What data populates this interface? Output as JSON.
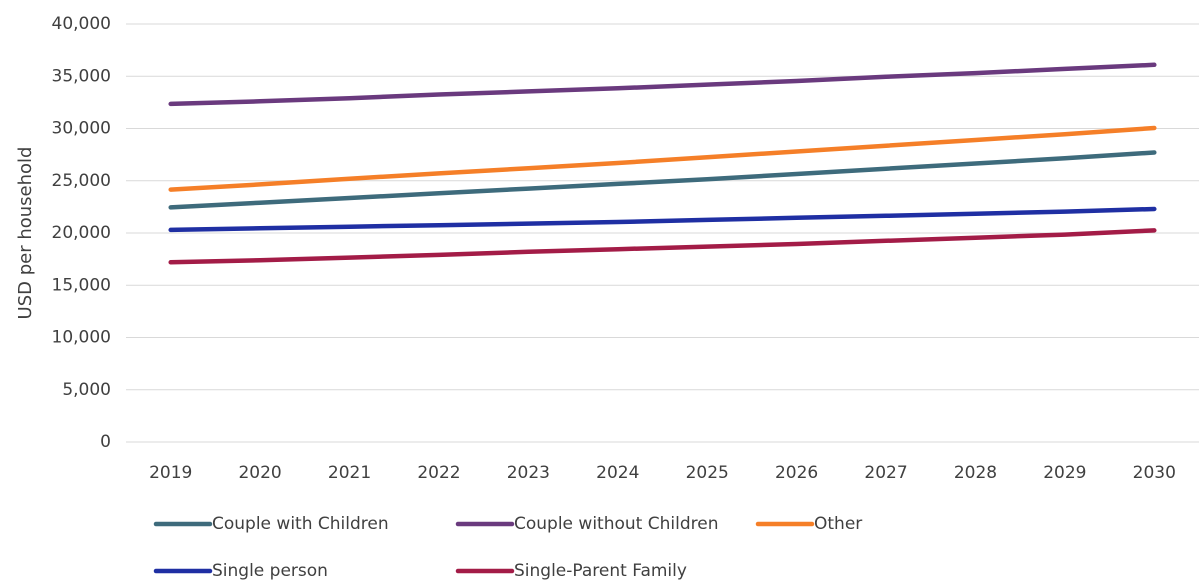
{
  "chart_data": {
    "type": "line",
    "title": "",
    "xlabel": "",
    "ylabel": "USD per household",
    "ylim": [
      0,
      40000
    ],
    "yticks": [
      0,
      5000,
      10000,
      15000,
      20000,
      25000,
      30000,
      35000,
      40000
    ],
    "ytick_labels": [
      "0",
      "5,000",
      "10,000",
      "15,000",
      "20,000",
      "25,000",
      "30,000",
      "35,000",
      "40,000"
    ],
    "grid": true,
    "legend_position": "bottom",
    "categories": [
      "2019",
      "2020",
      "2021",
      "2022",
      "2023",
      "2024",
      "2025",
      "2026",
      "2027",
      "2028",
      "2029",
      "2030"
    ],
    "series": [
      {
        "name": "Couple with Children",
        "color": "#3e6b7c",
        "values": [
          22450,
          22900,
          23350,
          23800,
          24250,
          24700,
          25150,
          25650,
          26150,
          26650,
          27150,
          27700
        ]
      },
      {
        "name": "Couple without Children",
        "color": "#6a3a7e",
        "values": [
          32350,
          32600,
          32900,
          33250,
          33550,
          33850,
          34200,
          34550,
          34950,
          35300,
          35700,
          36100
        ]
      },
      {
        "name": "Other",
        "color": "#f57f28",
        "values": [
          24150,
          24650,
          25200,
          25700,
          26200,
          26700,
          27250,
          27800,
          28350,
          28900,
          29450,
          30050
        ]
      },
      {
        "name": "Single person",
        "color": "#1f2fa3",
        "values": [
          20300,
          20450,
          20600,
          20750,
          20900,
          21050,
          21250,
          21450,
          21650,
          21850,
          22050,
          22300
        ]
      },
      {
        "name": "Single-Parent Family",
        "color": "#a31c47",
        "values": [
          17200,
          17400,
          17650,
          17900,
          18200,
          18450,
          18700,
          18950,
          19250,
          19550,
          19850,
          20250
        ]
      }
    ]
  }
}
